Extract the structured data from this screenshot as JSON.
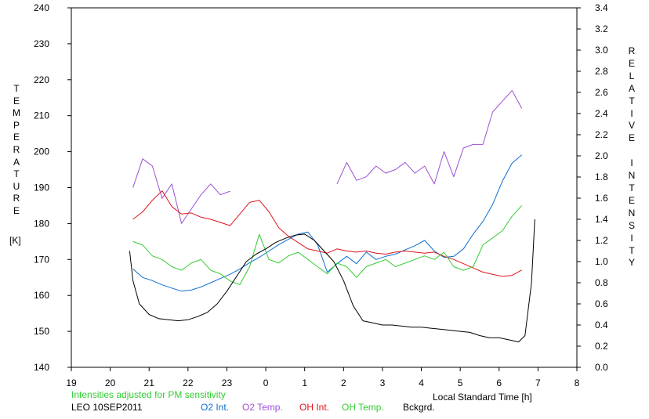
{
  "chart_data": {
    "type": "line",
    "title": "",
    "xlabel": "Local Standard Time [h]",
    "ylabel_left": "TEMPERATURE",
    "ylabel_left_unit": "[K]",
    "ylabel_right": "RELATIVE INTENSITY",
    "note": "Intensities adjusted for PM sensitivity",
    "station": "LEO 10SEP2011",
    "x_ticks": [
      "19",
      "20",
      "21",
      "22",
      "23",
      "0",
      "1",
      "2",
      "3",
      "4",
      "5",
      "6",
      "7",
      "8"
    ],
    "x_range_hours_after_19": [
      0,
      13
    ],
    "y_left_ticks": [
      140,
      150,
      160,
      170,
      180,
      190,
      200,
      210,
      220,
      230,
      240
    ],
    "y_left_range": [
      140,
      240
    ],
    "y_right_ticks": [
      "0.0",
      "0.2",
      "0.4",
      "0.6",
      "0.8",
      "1.0",
      "1.2",
      "1.4",
      "1.6",
      "1.8",
      "2.0",
      "2.2",
      "2.4",
      "2.6",
      "2.8",
      "3.0",
      "3.2",
      "3.4"
    ],
    "y_right_range": [
      0,
      3.4
    ],
    "grid": false,
    "series": [
      {
        "name": "O2 Int.",
        "color": "#0b6fd3",
        "axis": "right",
        "x": [
          "20:35",
          "20:50",
          "21:05",
          "21:20",
          "21:35",
          "21:50",
          "22:05",
          "22:20",
          "22:35",
          "22:50",
          "23:05",
          "23:20",
          "23:35",
          "23:50",
          "0:05",
          "0:20",
          "0:35",
          "0:50",
          "1:05",
          "1:20",
          "1:35",
          "1:50",
          "2:05",
          "2:20",
          "2:35",
          "2:50",
          "3:05",
          "3:20",
          "3:35",
          "3:50",
          "4:05",
          "4:20",
          "4:35",
          "4:50",
          "5:05",
          "5:20",
          "5:35",
          "5:50",
          "6:05",
          "6:20",
          "6:35"
        ],
        "values": [
          0.93,
          0.85,
          0.82,
          0.78,
          0.75,
          0.72,
          0.73,
          0.76,
          0.8,
          0.84,
          0.88,
          0.93,
          0.99,
          1.04,
          1.1,
          1.16,
          1.21,
          1.26,
          1.28,
          1.16,
          0.9,
          0.98,
          1.05,
          0.98,
          1.09,
          1.02,
          1.05,
          1.07,
          1.11,
          1.15,
          1.2,
          1.1,
          1.04,
          1.05,
          1.12,
          1.26,
          1.38,
          1.54,
          1.76,
          1.93,
          2.01
        ]
      },
      {
        "name": "O2 Temp.",
        "color": "#9b4fd6",
        "axis": "left",
        "x": [
          "20:35",
          "20:50",
          "21:05",
          "21:20",
          "21:35",
          "21:50",
          "22:05",
          "22:20",
          "22:35",
          "22:50",
          "23:05",
          "1:50",
          "2:05",
          "2:20",
          "2:35",
          "2:50",
          "3:05",
          "3:20",
          "3:35",
          "3:50",
          "4:05",
          "4:20",
          "4:35",
          "4:50",
          "5:05",
          "5:20",
          "5:35",
          "5:50",
          "6:05",
          "6:20",
          "6:35"
        ],
        "values": [
          190,
          198,
          196,
          187,
          191,
          180,
          184,
          188,
          191,
          188,
          189,
          191,
          197,
          192,
          193,
          196,
          194,
          195,
          197,
          194,
          196,
          191,
          200,
          193,
          201,
          202,
          202,
          211,
          214,
          217,
          212
        ]
      },
      {
        "name": "OH Int.",
        "color": "#e0141e",
        "axis": "right",
        "x": [
          "20:35",
          "20:50",
          "21:05",
          "21:20",
          "21:35",
          "21:50",
          "22:05",
          "22:20",
          "22:35",
          "22:50",
          "23:05",
          "23:20",
          "23:35",
          "23:50",
          "0:05",
          "0:20",
          "0:35",
          "0:50",
          "1:05",
          "1:20",
          "1:35",
          "1:50",
          "2:05",
          "2:20",
          "2:35",
          "2:50",
          "3:05",
          "3:20",
          "3:35",
          "3:50",
          "4:05",
          "4:20",
          "4:35",
          "4:50",
          "5:05",
          "5:20",
          "5:35",
          "5:50",
          "6:05",
          "6:20",
          "6:35"
        ],
        "values": [
          1.4,
          1.47,
          1.58,
          1.67,
          1.52,
          1.45,
          1.46,
          1.42,
          1.4,
          1.37,
          1.34,
          1.45,
          1.56,
          1.58,
          1.47,
          1.32,
          1.24,
          1.18,
          1.12,
          1.1,
          1.08,
          1.12,
          1.1,
          1.09,
          1.1,
          1.08,
          1.07,
          1.09,
          1.1,
          1.09,
          1.08,
          1.09,
          1.05,
          1.02,
          0.98,
          0.94,
          0.9,
          0.88,
          0.86,
          0.87,
          0.92
        ]
      },
      {
        "name": "OH Temp.",
        "color": "#33cc33",
        "axis": "left",
        "x": [
          "20:35",
          "20:50",
          "21:05",
          "21:20",
          "21:35",
          "21:50",
          "22:05",
          "22:20",
          "22:35",
          "22:50",
          "23:05",
          "23:20",
          "23:35",
          "23:50",
          "0:05",
          "0:20",
          "0:35",
          "0:50",
          "1:05",
          "1:20",
          "1:35",
          "1:50",
          "2:05",
          "2:20",
          "2:35",
          "2:50",
          "3:05",
          "3:20",
          "3:35",
          "3:50",
          "4:05",
          "4:20",
          "4:35",
          "4:50",
          "5:05",
          "5:20",
          "5:35",
          "5:50",
          "6:05",
          "6:20",
          "6:35"
        ],
        "values": [
          175,
          174,
          171,
          170,
          168,
          167,
          169,
          170,
          167,
          166,
          164,
          163,
          168,
          177,
          170,
          169,
          171,
          172,
          170,
          168,
          166,
          169,
          168,
          165,
          168,
          169,
          170,
          168,
          169,
          170,
          171,
          170,
          172,
          168,
          167,
          168,
          174,
          176,
          178,
          182,
          185
        ]
      },
      {
        "name": "Bckgrd.",
        "color": "#000000",
        "axis": "right",
        "x": [
          "20:30",
          "20:35",
          "20:45",
          "21:00",
          "21:15",
          "21:30",
          "21:45",
          "22:00",
          "22:15",
          "22:30",
          "22:45",
          "23:00",
          "23:15",
          "23:30",
          "23:45",
          "0:00",
          "0:15",
          "0:30",
          "0:45",
          "1:00",
          "1:15",
          "1:30",
          "1:45",
          "2:00",
          "2:15",
          "2:30",
          "2:45",
          "3:00",
          "3:15",
          "3:30",
          "3:45",
          "4:00",
          "4:15",
          "4:30",
          "4:45",
          "5:00",
          "5:15",
          "5:30",
          "5:45",
          "6:00",
          "6:15",
          "6:30",
          "6:40",
          "6:50",
          "6:55"
        ],
        "values": [
          1.1,
          0.82,
          0.6,
          0.5,
          0.46,
          0.45,
          0.44,
          0.45,
          0.48,
          0.52,
          0.6,
          0.72,
          0.86,
          1.0,
          1.07,
          1.12,
          1.18,
          1.22,
          1.25,
          1.26,
          1.2,
          1.1,
          1.0,
          0.82,
          0.58,
          0.44,
          0.42,
          0.4,
          0.4,
          0.39,
          0.38,
          0.38,
          0.37,
          0.36,
          0.35,
          0.34,
          0.33,
          0.3,
          0.28,
          0.28,
          0.26,
          0.24,
          0.3,
          0.8,
          1.4
        ]
      }
    ]
  },
  "legend": [
    {
      "label": "O2 Int.",
      "color": "#0b6fd3"
    },
    {
      "label": "O2 Temp.",
      "color": "#9b4fd6"
    },
    {
      "label": "OH Int.",
      "color": "#e0141e"
    },
    {
      "label": "OH Temp.",
      "color": "#33cc33"
    },
    {
      "label": "Bckgrd.",
      "color": "#000000"
    }
  ],
  "colors": {
    "note": "#33cc33",
    "axis": "#000000"
  }
}
